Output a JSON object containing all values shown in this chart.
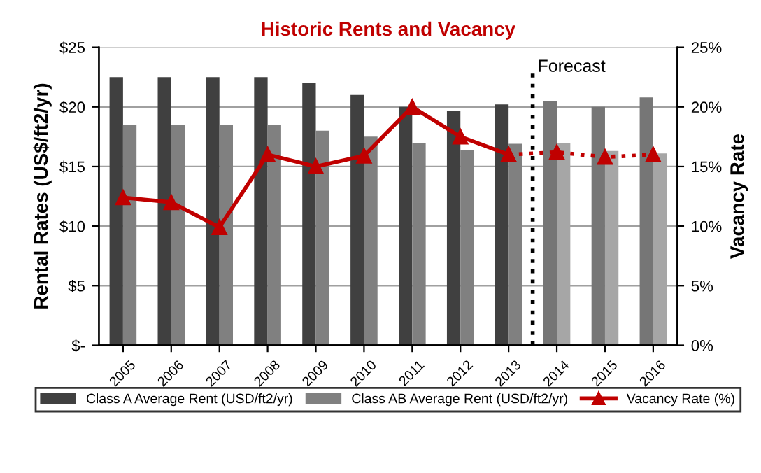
{
  "chart_data": {
    "type": "bar",
    "title": "Historic Rents and Vacancy",
    "ylabel": "Rental Rates (US$/ft2/yr)",
    "y2label": "Vacancy Rate",
    "categories": [
      "2005",
      "2006",
      "2007",
      "2008",
      "2009",
      "2010",
      "2011",
      "2012",
      "2013",
      "2014",
      "2015",
      "2016"
    ],
    "series": [
      {
        "name": "Class A Average Rent (USD/ft2/yr)",
        "color": "#404040",
        "colors": [
          "#404040",
          "#404040",
          "#404040",
          "#404040",
          "#404040",
          "#404040",
          "#404040",
          "#404040",
          "#404040",
          "#767676",
          "#767676",
          "#767676"
        ],
        "values": [
          22.5,
          22.5,
          22.5,
          22.5,
          22,
          21,
          20,
          19.7,
          20.2,
          20.5,
          20,
          20.8
        ]
      },
      {
        "name": "Class AB Average Rent (USD/ft2/yr)",
        "color": "#808080",
        "colors": [
          "#808080",
          "#808080",
          "#808080",
          "#808080",
          "#808080",
          "#808080",
          "#808080",
          "#808080",
          "#808080",
          "#a6a6a6",
          "#a6a6a6",
          "#a6a6a6"
        ],
        "values": [
          18.5,
          18.5,
          18.5,
          18.5,
          18,
          17.5,
          17,
          16.4,
          16.9,
          17,
          16.3,
          16.1
        ]
      },
      {
        "name": "Vacancy Rate (%)",
        "type": "line",
        "axis": "y2",
        "color": "#c00000",
        "marker": "triangle",
        "line_style": "solid",
        "values": [
          12.4,
          12,
          9.9,
          16,
          15,
          15.9,
          20,
          17.5,
          16,
          null,
          null,
          null
        ]
      },
      {
        "type": "line",
        "axis": "y2",
        "color": "#c00000",
        "marker": "triangle",
        "line_style": "dotted",
        "values": [
          null,
          null,
          null,
          null,
          null,
          null,
          null,
          null,
          16,
          16.2,
          15.8,
          16
        ]
      }
    ],
    "ylim": [
      0,
      25
    ],
    "yticks": [
      {
        "value": 0,
        "label": "$-"
      },
      {
        "value": 5,
        "label": "$5"
      },
      {
        "value": 10,
        "label": "$10"
      },
      {
        "value": 15,
        "label": "$15"
      },
      {
        "value": 20,
        "label": "$20"
      },
      {
        "value": 25,
        "label": "$25"
      }
    ],
    "y2lim": [
      0,
      25
    ],
    "y2ticks": [
      {
        "value": 0,
        "label": "0%"
      },
      {
        "value": 5,
        "label": "5%"
      },
      {
        "value": 10,
        "label": "10%"
      },
      {
        "value": 15,
        "label": "15%"
      },
      {
        "value": 20,
        "label": "20%"
      },
      {
        "value": 25,
        "label": "25%"
      }
    ],
    "ref_lines": [
      {
        "axis": "x",
        "value": "2014",
        "label": "Forecast",
        "color": "#000000",
        "line_style": "dotted"
      }
    ],
    "grid": "y",
    "legend": "bottom"
  }
}
